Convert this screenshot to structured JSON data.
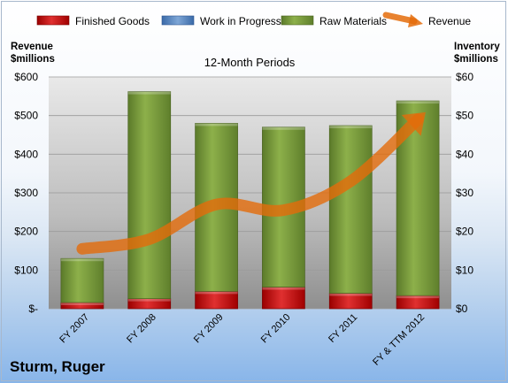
{
  "chart_data": {
    "type": "bar",
    "stacked": true,
    "title": "12-Month Periods",
    "left_axis_title": [
      "Revenue",
      "$millions"
    ],
    "right_axis_title": [
      "Inventory",
      "$millions"
    ],
    "categories": [
      "FY 2007",
      "FY 2008",
      "FY 2009",
      "FY 2010",
      "FY 2011",
      "FY & TTM 2012"
    ],
    "y_left_ticks": [
      "$-",
      "$100",
      "$200",
      "$300",
      "$400",
      "$500",
      "$600"
    ],
    "y_right_ticks": [
      "$0",
      "$10",
      "$20",
      "$30",
      "$40",
      "$50",
      "$60"
    ],
    "ylim_left": [
      0,
      600
    ],
    "ylim_right": [
      0,
      60
    ],
    "legend_position": "top",
    "series": [
      {
        "name": "Finished Goods",
        "axis": "right",
        "type": "bar",
        "color": "#c00000",
        "values": [
          1.6,
          2.6,
          4.5,
          5.6,
          4.0,
          3.4
        ]
      },
      {
        "name": "Work in Progress",
        "axis": "right",
        "type": "bar",
        "color": "#4f81bd",
        "values": [
          0,
          0,
          0,
          0,
          0,
          0
        ]
      },
      {
        "name": "Raw Materials",
        "axis": "right",
        "type": "bar",
        "color": "#77933c",
        "values": [
          11.4,
          53.6,
          43.5,
          41.4,
          43.4,
          50.4
        ]
      },
      {
        "name": "Revenue",
        "axis": "left",
        "type": "arrow-line",
        "color": "#e46c0a",
        "values": [
          155,
          180,
          270,
          255,
          330,
          490
        ]
      }
    ],
    "company": "Sturm, Ruger"
  }
}
